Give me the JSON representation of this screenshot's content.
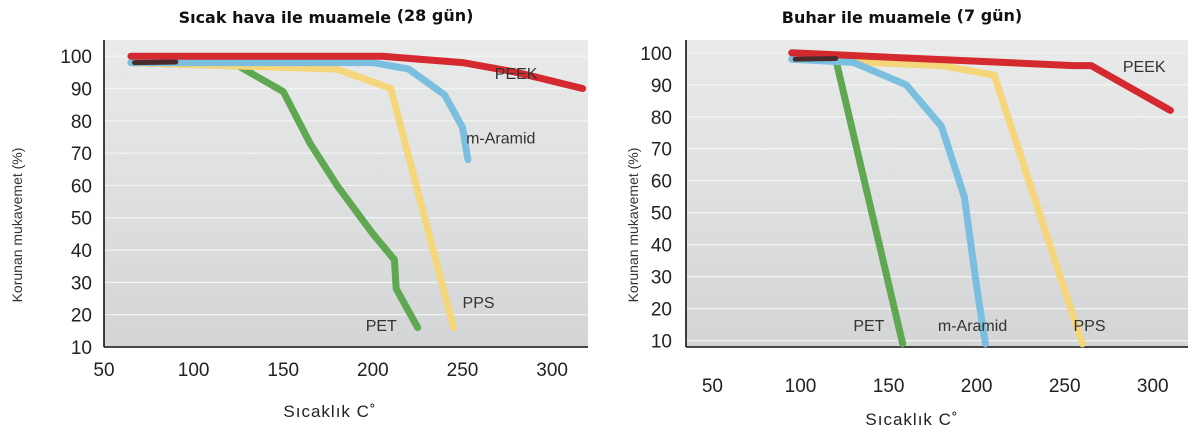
{
  "chart_data": [
    {
      "type": "line",
      "title": "Sıcak hava ile muamele",
      "title_suffix": "(28 gün)",
      "xlabel": "Sıcaklık  C˚",
      "ylabel": "Korunan mukavemet (%)",
      "xlim": [
        50,
        320
      ],
      "ylim": [
        10,
        105
      ],
      "x_ticks": [
        50,
        100,
        150,
        200,
        250,
        300
      ],
      "y_ticks": [
        10,
        20,
        30,
        40,
        50,
        60,
        70,
        80,
        90,
        100
      ],
      "grid": true,
      "series": [
        {
          "name": "PEEK",
          "color": "#d42a2f",
          "label_x": 268,
          "label_y": 93,
          "points": [
            [
              65,
              100
            ],
            [
              205,
              100
            ],
            [
              250,
              98
            ],
            [
              280,
              95
            ],
            [
              317,
              90
            ]
          ]
        },
        {
          "name": "m-Aramid",
          "color": "#7bbfe0",
          "label_x": 252,
          "label_y": 73,
          "points": [
            [
              65,
              98
            ],
            [
              200,
              98
            ],
            [
              220,
              96
            ],
            [
              240,
              88
            ],
            [
              250,
              78
            ],
            [
              253,
              68
            ]
          ]
        },
        {
          "name": "PPS",
          "color": "#f6d67a",
          "label_x": 250,
          "label_y": 22,
          "points": [
            [
              65,
              98
            ],
            [
              180,
              96
            ],
            [
              210,
              90
            ],
            [
              245,
              16
            ]
          ]
        },
        {
          "name": "PET",
          "color": "#5fa851",
          "label_x": 196,
          "label_y": 15,
          "points": [
            [
              65,
              98
            ],
            [
              125,
              97
            ],
            [
              150,
              89
            ],
            [
              165,
              73
            ],
            [
              180,
              60
            ],
            [
              200,
              45
            ],
            [
              212,
              37
            ],
            [
              213,
              28
            ],
            [
              225,
              16
            ]
          ]
        }
      ]
    },
    {
      "type": "line",
      "title": "Buhar ile muamele",
      "title_suffix": "(7 gün)",
      "xlabel": "Sıcaklık  C˚",
      "ylabel": "Korunan mukavemet (%)",
      "xlim": [
        35,
        320
      ],
      "ylim": [
        8,
        104
      ],
      "x_ticks": [
        50,
        100,
        150,
        200,
        250,
        300
      ],
      "y_ticks": [
        10,
        20,
        30,
        40,
        50,
        60,
        70,
        80,
        90,
        100
      ],
      "grid": true,
      "series": [
        {
          "name": "PEEK",
          "color": "#d42a2f",
          "label_x": 283,
          "label_y": 94,
          "points": [
            [
              95,
              100
            ],
            [
              255,
              96
            ],
            [
              265,
              96
            ],
            [
              310,
              82
            ]
          ]
        },
        {
          "name": "m-Aramid",
          "color": "#7bbfe0",
          "label_x": 178,
          "label_y": 13,
          "points": [
            [
              95,
              98
            ],
            [
              130,
              97
            ],
            [
              160,
              90
            ],
            [
              180,
              77
            ],
            [
              193,
              55
            ],
            [
              200,
              27
            ],
            [
              205,
              9
            ]
          ]
        },
        {
          "name": "PPS",
          "color": "#f6d67a",
          "label_x": 255,
          "label_y": 13,
          "points": [
            [
              95,
              98
            ],
            [
              180,
              96
            ],
            [
              210,
              93
            ],
            [
              260,
              9
            ]
          ]
        },
        {
          "name": "PET",
          "color": "#5fa851",
          "label_x": 130,
          "label_y": 13,
          "points": [
            [
              95,
              98
            ],
            [
              120,
              98
            ],
            [
              158,
              9
            ]
          ]
        }
      ]
    }
  ]
}
